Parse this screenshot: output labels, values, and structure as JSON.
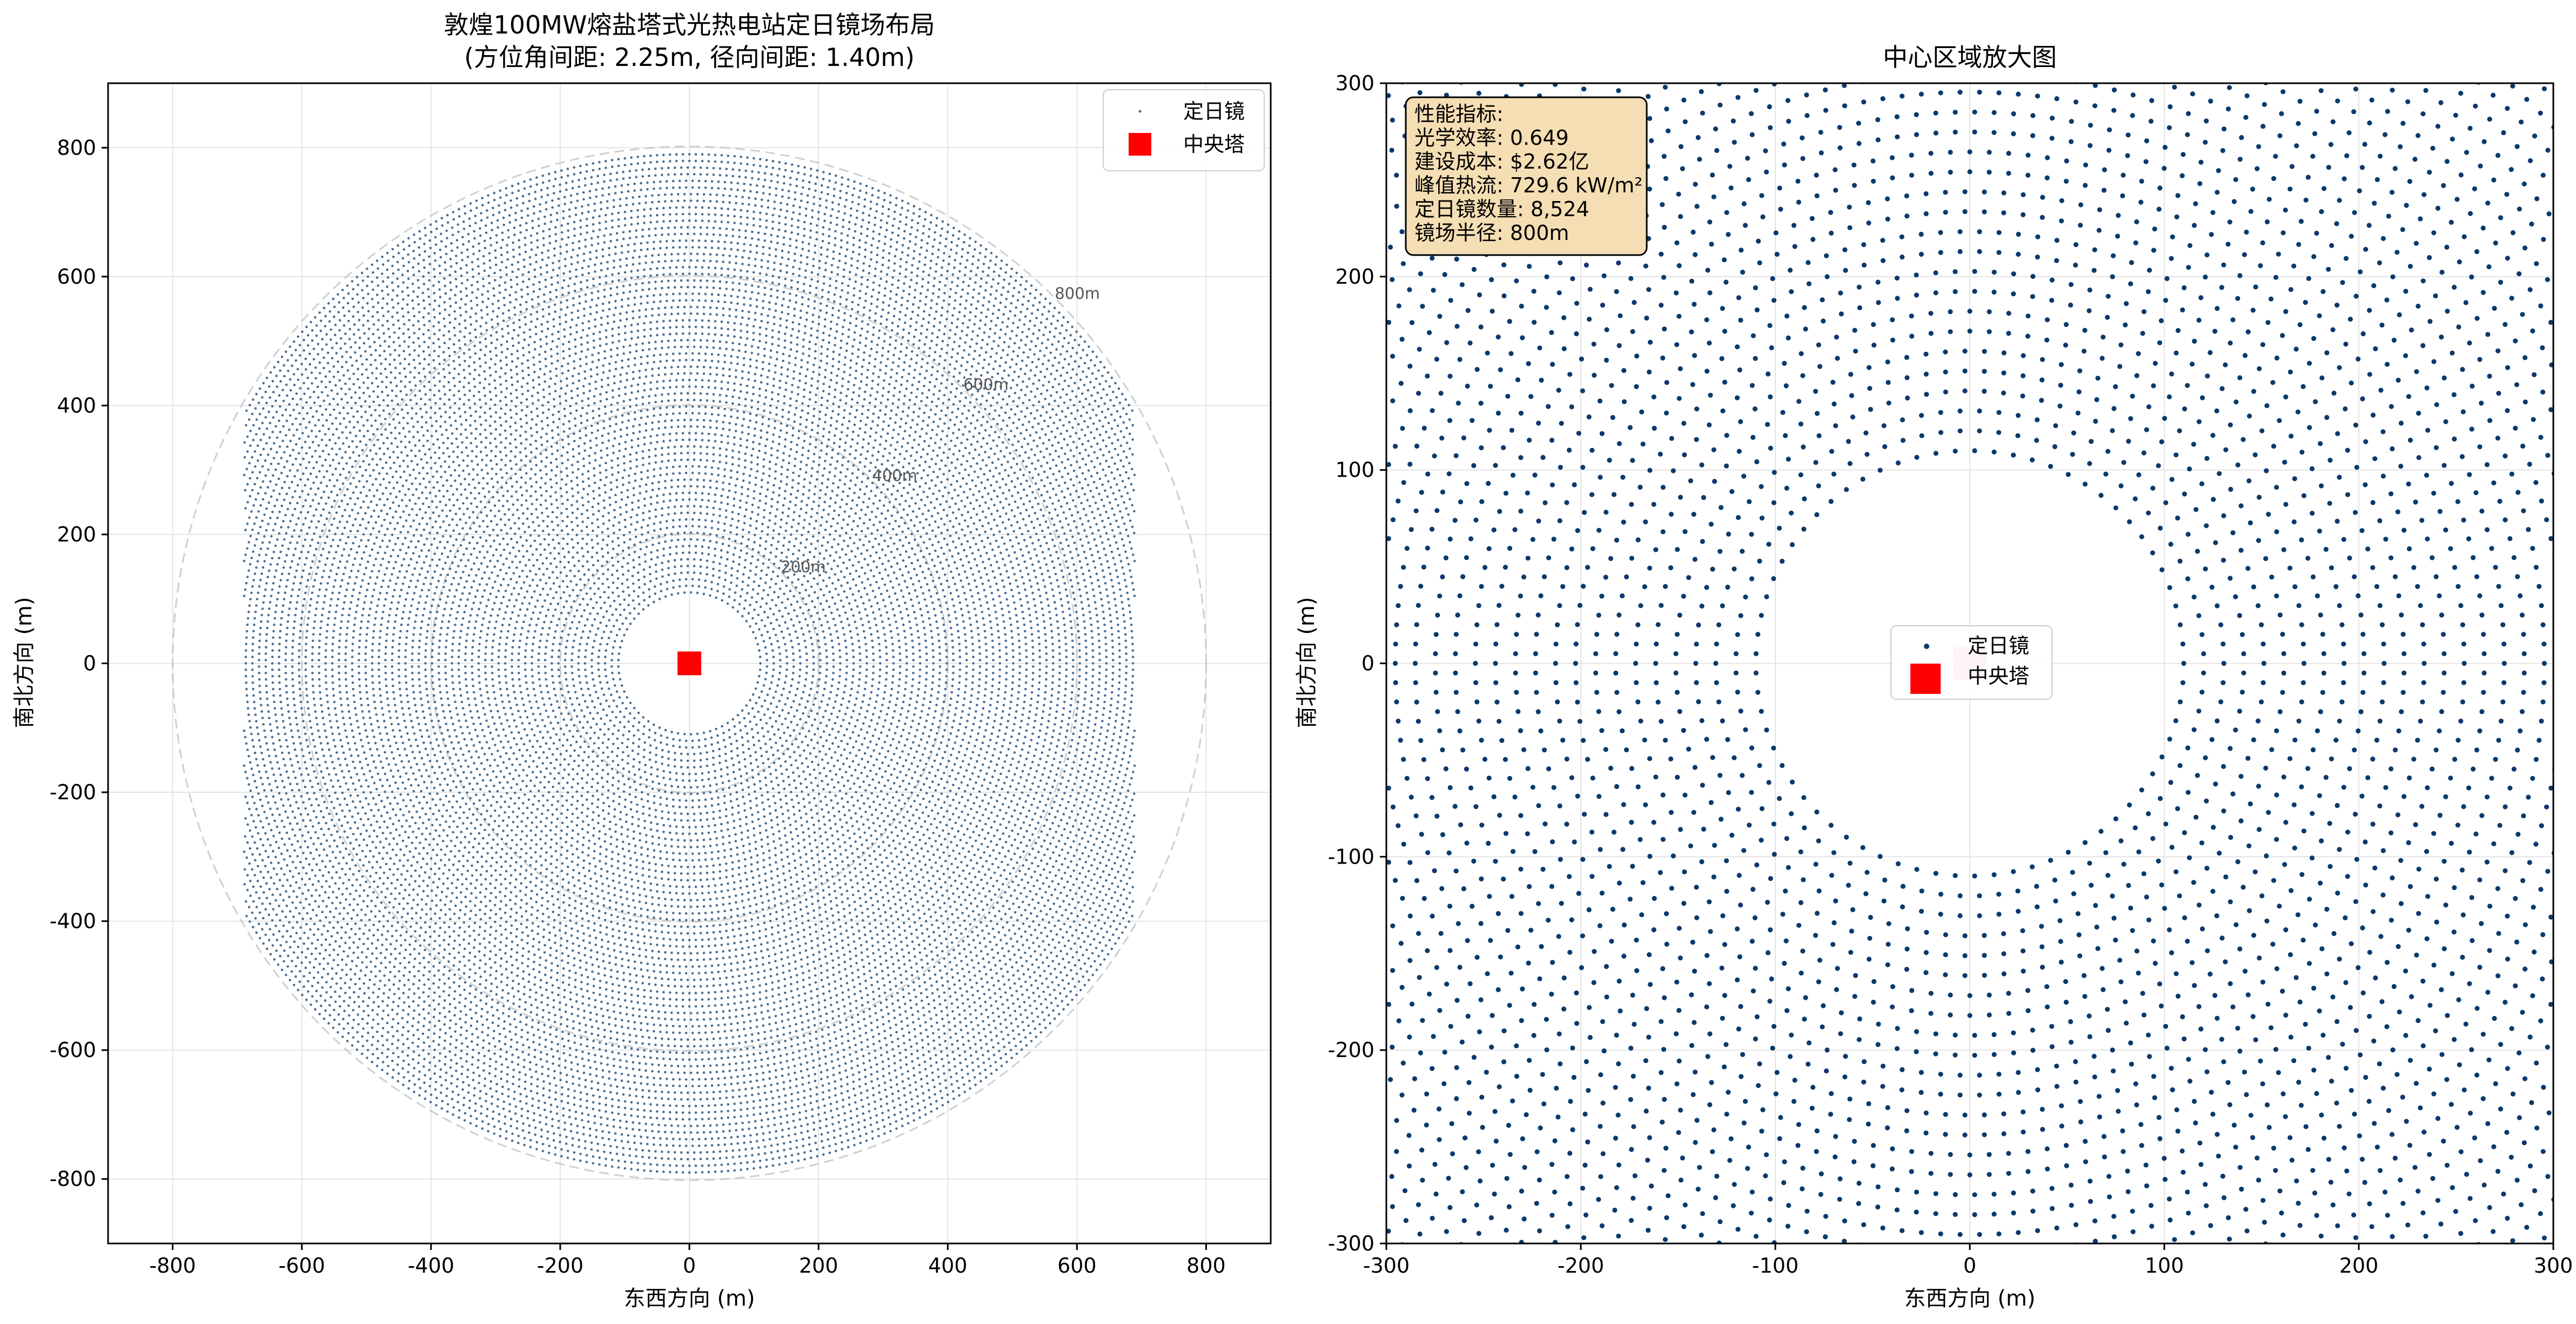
{
  "charts": [
    {
      "type": "scatter",
      "title_line1": "敦煌100MW熔盐塔式光热电站定日镜场布局",
      "title_line2": "(方位角间距: 2.25m, 径向间距: 1.40m)",
      "xlabel": "东西方向 (m)",
      "ylabel": "南北方向 (m)",
      "xlim": [
        -900,
        900
      ],
      "ylim": [
        -900,
        900
      ],
      "xticks": [
        -800,
        -600,
        -400,
        -200,
        0,
        200,
        400,
        600,
        800
      ],
      "yticks": [
        -800,
        -600,
        -400,
        -200,
        0,
        200,
        400,
        600,
        800
      ],
      "grid": true,
      "legend_position": "top-right",
      "legend": {
        "heliostat": "定日镜",
        "tower": "中央塔"
      },
      "ring_labels": [
        "200m",
        "400m",
        "600m",
        "800m"
      ],
      "reference_circles_m": [
        200,
        400,
        600,
        800
      ],
      "tower": {
        "x": 0,
        "y": 0,
        "color": "#ff0000"
      },
      "heliostat_color": "#4a6f93",
      "field_clip_x": 690
    },
    {
      "type": "scatter",
      "title": "中心区域放大图",
      "xlabel": "东西方向 (m)",
      "ylabel": "南北方向 (m)",
      "xlim": [
        -300,
        300
      ],
      "ylim": [
        -300,
        300
      ],
      "xticks": [
        -300,
        -200,
        -100,
        0,
        100,
        200,
        300
      ],
      "yticks": [
        -300,
        -200,
        -100,
        0,
        100,
        200,
        300
      ],
      "grid": true,
      "legend_position": "center",
      "legend": {
        "heliostat": "定日镜",
        "tower": "中央塔"
      },
      "tower": {
        "x": 0,
        "y": 0,
        "color": "#ffc0cb"
      },
      "heliostat_color": "#0a3a6b",
      "info_box": [
        "性能指标:",
        "光学效率: 0.649",
        "建设成本: $2.62亿",
        "峰值热流: 729.6 kW/m²",
        "定日镜数量: 8,524",
        "镜场半径: 800m"
      ],
      "info_box_color": "#f5deb3"
    }
  ],
  "field": {
    "inner_radius_m": 110,
    "outer_radius_m": 795,
    "radial_step_m": 10.3,
    "azimuth_step_m": 10.0
  }
}
